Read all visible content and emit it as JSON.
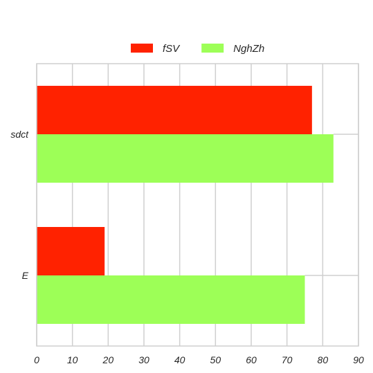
{
  "chart_data": {
    "type": "bar",
    "orientation": "horizontal",
    "categories": [
      "sdct",
      "E"
    ],
    "series": [
      {
        "name": "fSV",
        "color": "#ff2200",
        "values": [
          77,
          19
        ]
      },
      {
        "name": "NghZh",
        "color": "#9dff57",
        "values": [
          83,
          75
        ]
      }
    ],
    "xlim": [
      0,
      90
    ],
    "xticks": [
      0,
      10,
      20,
      30,
      40,
      50,
      60,
      70,
      80,
      90
    ],
    "grid": true,
    "legend": "top-center",
    "title": "",
    "xlabel": "",
    "ylabel": ""
  }
}
